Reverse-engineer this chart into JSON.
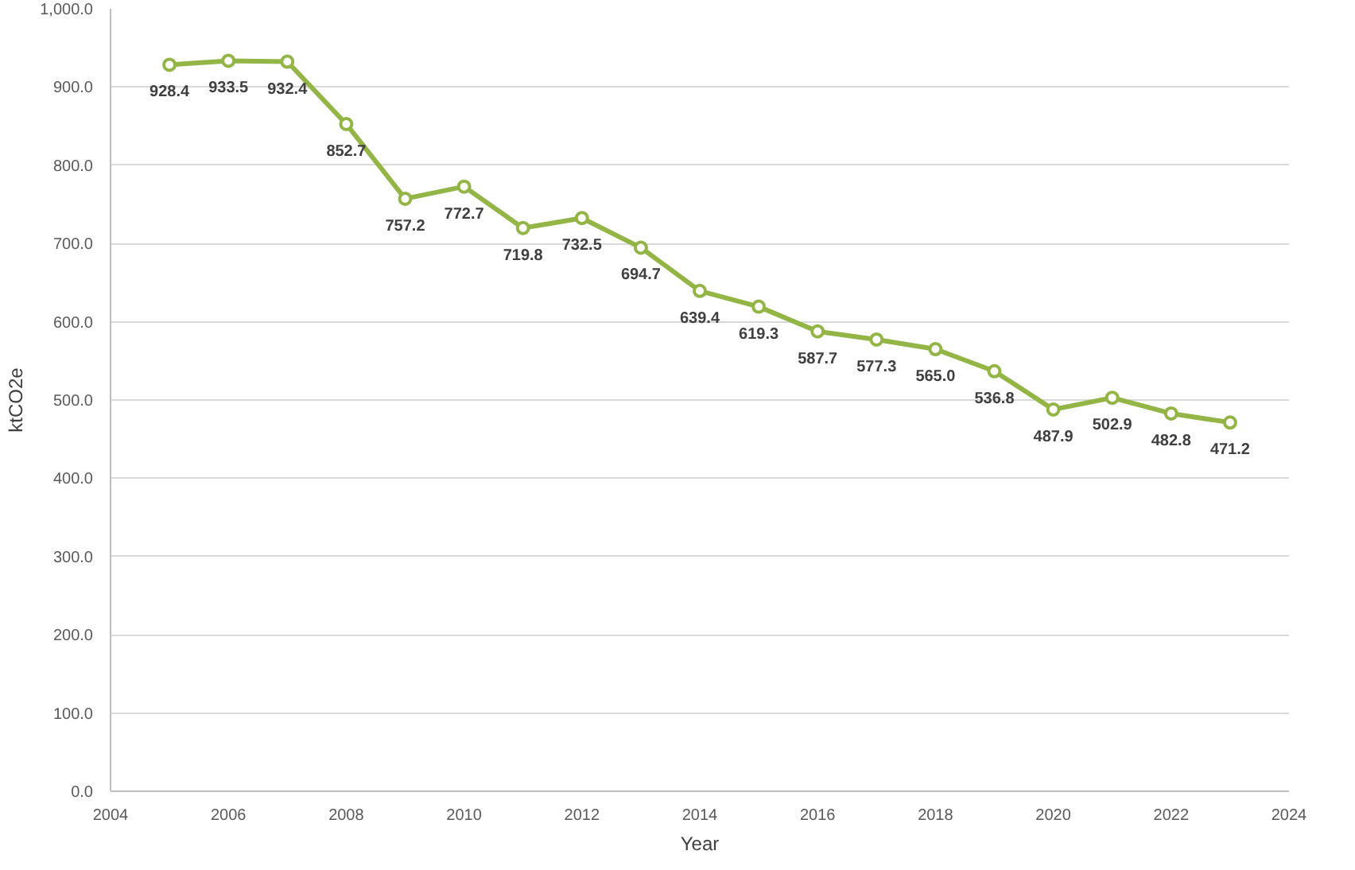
{
  "chart_data": {
    "type": "line",
    "xlabel": "Year",
    "ylabel": "ktCO2e",
    "x": [
      2005,
      2006,
      2007,
      2008,
      2009,
      2010,
      2011,
      2012,
      2013,
      2014,
      2015,
      2016,
      2017,
      2018,
      2019,
      2020,
      2021,
      2022,
      2023
    ],
    "series": [
      {
        "color": "#92b545",
        "values": [
          928.4,
          933.5,
          932.4,
          852.7,
          757.2,
          772.7,
          719.8,
          732.5,
          694.7,
          639.4,
          619.3,
          587.7,
          577.3,
          565.0,
          536.8,
          487.9,
          502.9,
          482.8,
          471.2
        ]
      }
    ],
    "value_labels": [
      "928.4",
      "933.5",
      "932.4",
      "852.7",
      "757.2",
      "772.7",
      "719.8",
      "732.5",
      "694.7",
      "639.4",
      "619.3",
      "587.7",
      "577.3",
      "565.0",
      "536.8",
      "487.9",
      "502.9",
      "482.8",
      "471.2"
    ],
    "marker": "circle",
    "line_style": "solid",
    "grid": "y",
    "xlim": [
      2004,
      2024
    ],
    "xticks": [
      2004,
      2006,
      2008,
      2010,
      2012,
      2014,
      2016,
      2018,
      2020,
      2022,
      2024
    ],
    "ylim": [
      0,
      1000
    ],
    "yticks": [
      {
        "value": 0,
        "label": "0.0"
      },
      {
        "value": 100,
        "label": "100.0"
      },
      {
        "value": 200,
        "label": "200.0"
      },
      {
        "value": 300,
        "label": "300.0"
      },
      {
        "value": 400,
        "label": "400.0"
      },
      {
        "value": 500,
        "label": "500.0"
      },
      {
        "value": 600,
        "label": "600.0"
      },
      {
        "value": 700,
        "label": "700.0"
      },
      {
        "value": 800,
        "label": "800.0"
      },
      {
        "value": 900,
        "label": "900.0"
      },
      {
        "value": 1000,
        "label": "1,000.0"
      }
    ]
  }
}
